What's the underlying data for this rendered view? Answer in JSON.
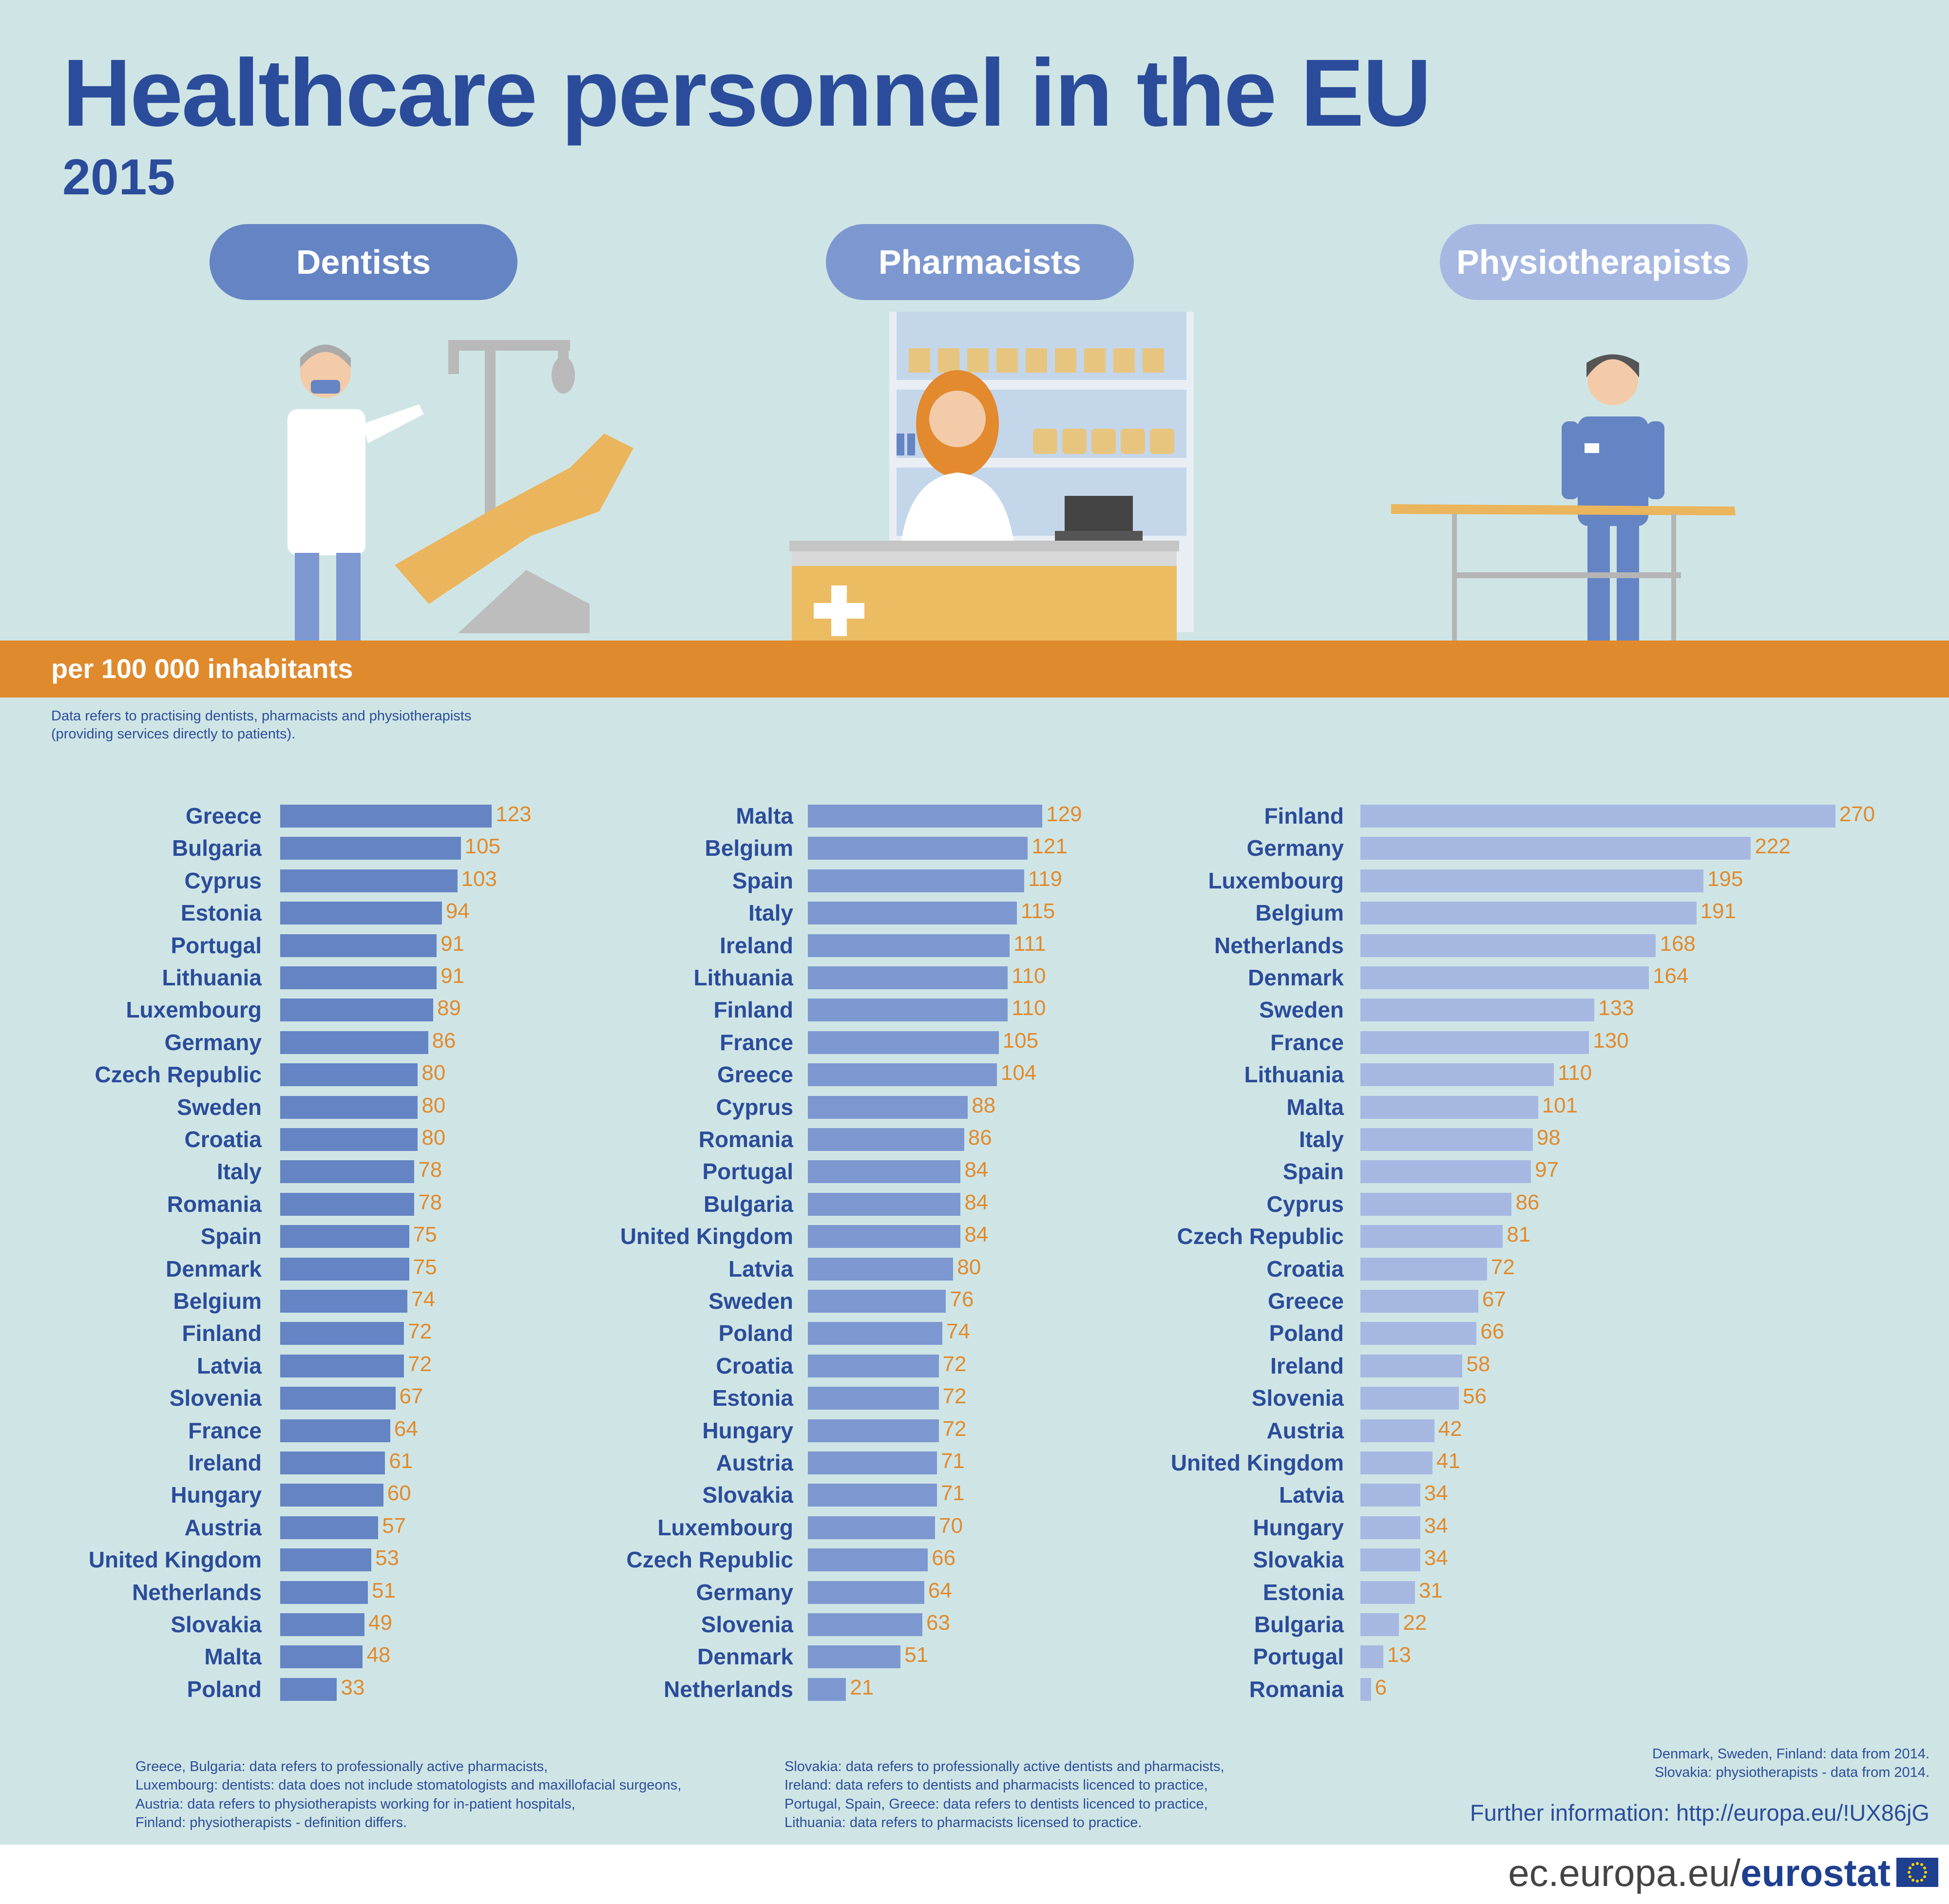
{
  "title": "Healthcare personnel in the EU",
  "year": "2015",
  "categories": {
    "dentists": "Dentists",
    "pharmacists": "Pharmacists",
    "physiotherapists": "Physiotherapists"
  },
  "unit_label": "per 100 000  inhabitants",
  "note": "Data refers to practising dentists, pharmacists and physiotherapists (providing services directly to patients).",
  "colors": {
    "dentists": "#6584c4",
    "pharmacists": "#7d98d0",
    "physiotherapists": "#a6b8e2",
    "value": "#e08a2e",
    "title": "#2b4c9a",
    "floor": "#e08a2e",
    "background": "#cfe5e5"
  },
  "chart_data": [
    {
      "type": "bar",
      "orientation": "horizontal",
      "title": "Dentists",
      "unit": "per 100 000 inhabitants",
      "categories": [
        "Greece",
        "Bulgaria",
        "Cyprus",
        "Estonia",
        "Portugal",
        "Lithuania",
        "Luxembourg",
        "Germany",
        "Czech Republic",
        "Sweden",
        "Croatia",
        "Italy",
        "Romania",
        "Spain",
        "Denmark",
        "Belgium",
        "Finland",
        "Latvia",
        "Slovenia",
        "France",
        "Ireland",
        "Hungary",
        "Austria",
        "United Kingdom",
        "Netherlands",
        "Slovakia",
        "Malta",
        "Poland"
      ],
      "values": [
        123,
        105,
        103,
        94,
        91,
        91,
        89,
        86,
        80,
        80,
        80,
        78,
        78,
        75,
        75,
        74,
        72,
        72,
        67,
        64,
        61,
        60,
        57,
        53,
        51,
        49,
        48,
        33
      ]
    },
    {
      "type": "bar",
      "orientation": "horizontal",
      "title": "Pharmacists",
      "unit": "per 100 000 inhabitants",
      "categories": [
        "Malta",
        "Belgium",
        "Spain",
        "Italy",
        "Ireland",
        "Lithuania",
        "Finland",
        "France",
        "Greece",
        "Cyprus",
        "Romania",
        "Portugal",
        "Bulgaria",
        "United Kingdom",
        "Latvia",
        "Sweden",
        "Poland",
        "Croatia",
        "Estonia",
        "Hungary",
        "Austria",
        "Slovakia",
        "Luxembourg",
        "Czech Republic",
        "Germany",
        "Slovenia",
        "Denmark",
        "Netherlands"
      ],
      "values": [
        129,
        121,
        119,
        115,
        111,
        110,
        110,
        105,
        104,
        88,
        86,
        84,
        84,
        84,
        80,
        76,
        74,
        72,
        72,
        72,
        71,
        71,
        70,
        66,
        64,
        63,
        51,
        21
      ]
    },
    {
      "type": "bar",
      "orientation": "horizontal",
      "title": "Physiotherapists",
      "unit": "per 100 000 inhabitants",
      "categories": [
        "Finland",
        "Germany",
        "Luxembourg",
        "Belgium",
        "Netherlands",
        "Denmark",
        "Sweden",
        "France",
        "Lithuania",
        "Malta",
        "Italy",
        "Spain",
        "Cyprus",
        "Czech Republic",
        "Croatia",
        "Greece",
        "Poland",
        "Ireland",
        "Slovenia",
        "Austria",
        "United Kingdom",
        "Latvia",
        "Hungary",
        "Slovakia",
        "Estonia",
        "Bulgaria",
        "Portugal",
        "Romania"
      ],
      "values": [
        270,
        222,
        195,
        191,
        168,
        164,
        133,
        130,
        110,
        101,
        98,
        97,
        86,
        81,
        72,
        67,
        66,
        58,
        56,
        42,
        41,
        34,
        34,
        34,
        31,
        22,
        13,
        6
      ]
    }
  ],
  "footnotes": {
    "col1": [
      "Greece, Bulgaria: data refers to professionally active pharmacists,",
      "Luxembourg: dentists: data does not include stomatologists and maxillofacial surgeons,",
      "Austria: data refers to physiotherapists working for in-patient hospitals,",
      "Finland: physiotherapists - definition differs."
    ],
    "col2": [
      "Slovakia: data refers to professionally active dentists and pharmacists,",
      "Ireland: data refers to dentists and pharmacists licenced to practice,",
      "Portugal, Spain, Greece: data refers to dentists licenced to practice,",
      "Lithuania: data refers to pharmacists licensed to practice."
    ],
    "col3": [
      "Denmark, Sweden, Finland: data from 2014.",
      "Slovakia: physiotherapists - data from 2014."
    ]
  },
  "further_info": "Further information: http://europa.eu/!UX86jG",
  "brand": {
    "domain": "ec.europa.eu/",
    "name": "eurostat"
  }
}
